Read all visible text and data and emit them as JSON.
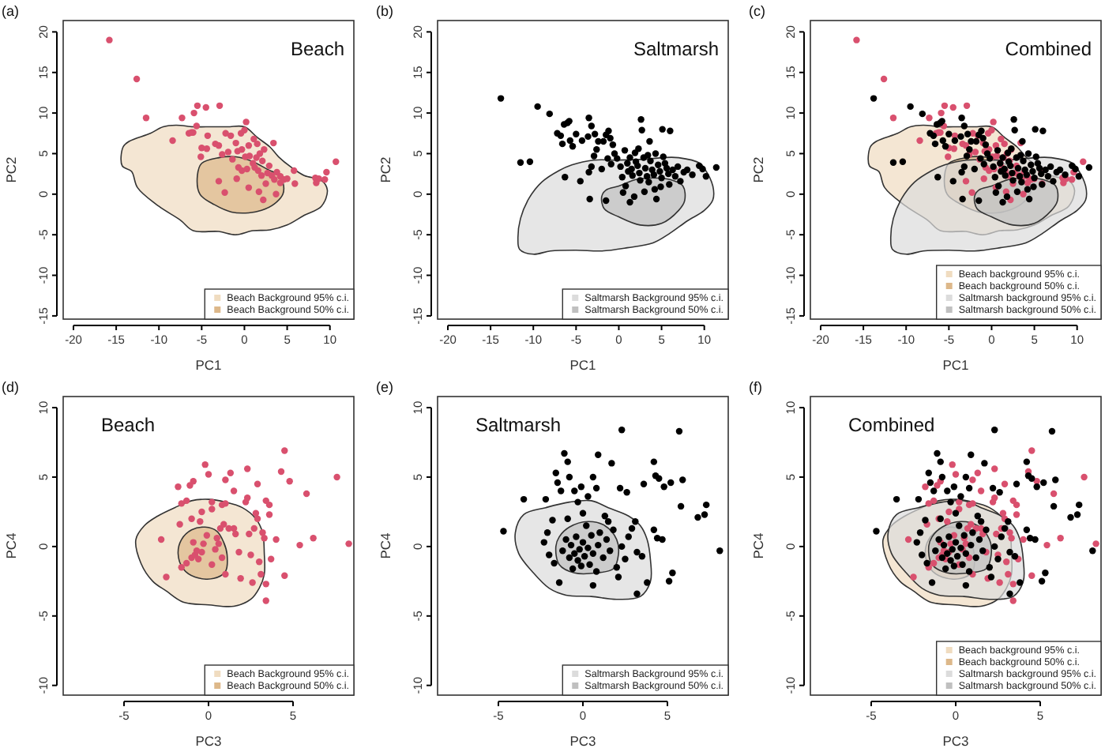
{
  "chart_data": [
    {
      "type": "scatter",
      "title": "Beach",
      "xlabel": "PC1",
      "ylabel": "PC2",
      "annotations": [
        "(a)"
      ],
      "xlim": [
        -21.2,
        12.8
      ],
      "ylim": [
        -15.4,
        21.4
      ],
      "xticks": [
        -20,
        -15,
        -10,
        -5,
        0,
        5,
        10
      ],
      "yticks": [
        -15,
        -10,
        -5,
        0,
        5,
        10,
        15,
        20
      ],
      "legend": "bottom right",
      "series": [
        {
          "type": "area",
          "name": "Beach Background 95% c.i.",
          "color": "#f0dcc0",
          "x": [
            -14.2,
            -14.3,
            -13.2,
            -12.5,
            -10,
            -7.5,
            -6,
            -3,
            -1,
            1,
            3,
            5,
            7,
            9,
            9.7,
            9,
            7,
            5.5,
            4,
            3,
            1.5,
            0,
            -2,
            -4.5,
            -6,
            -8,
            -9.5,
            -11,
            -13.5
          ],
          "values": [
            5.8,
            3.5,
            2.8,
            0.8,
            -1.5,
            -3.2,
            -4.5,
            -4.6,
            -5,
            -4.5,
            -4.4,
            -3.8,
            -2.6,
            -1.5,
            0.5,
            1.7,
            2.3,
            3.3,
            4.6,
            5.8,
            7,
            8.3,
            8.3,
            8.3,
            8.3,
            8.5,
            8.3,
            7.5,
            6.5
          ]
        },
        {
          "type": "area",
          "name": "Beach Background 50% c.i.",
          "color": "#ddb88a",
          "x": [
            -5.5,
            -5.2,
            -3.5,
            -1.5,
            0.5,
            2,
            3.5,
            4.5,
            4.5,
            4,
            2.8,
            1,
            -1,
            -3,
            -5
          ],
          "values": [
            2.3,
            0,
            -1.3,
            -2.2,
            -2.3,
            -2,
            -1.2,
            0,
            1.5,
            2.4,
            3,
            4,
            4.6,
            4.5,
            3.8
          ]
        },
        {
          "color": "#d9506e",
          "marker": "circle",
          "x": [
            -15.8,
            -12.6,
            -11.5,
            -8.4,
            -7.3,
            -6.5,
            -6.2,
            -5.9,
            -5.6,
            -5.5,
            -4.5,
            -2.9,
            -6,
            -5,
            -5.1,
            -4.4,
            -4.3,
            -3.4,
            -3,
            -2.6,
            -2.2,
            -1.6,
            -1.9,
            -1.4,
            -1,
            -0.8,
            -0.4,
            0,
            0.2,
            -0.3,
            0.5,
            0.1,
            0.6,
            1.1,
            1.5,
            1.4,
            1.8,
            2.3,
            2.1,
            2.9,
            3.4,
            -0.7,
            -0.3,
            0.3,
            1,
            1.6,
            2,
            2.7,
            3.2,
            3.8,
            4.2,
            4.6,
            5,
            5.8,
            5.9,
            4.2,
            3.5,
            -3,
            -2.3,
            -0.9,
            0.5,
            1.7,
            2.2,
            3.7,
            8.3,
            8.7,
            9.4,
            9.6,
            10.7,
            8.4,
            1.2,
            2.5
          ],
          "values": [
            19,
            14.2,
            9.4,
            6.6,
            9.4,
            7.5,
            7.6,
            10,
            8.4,
            10.9,
            10.7,
            10.9,
            7.6,
            5.7,
            4.6,
            5.6,
            7.2,
            6.2,
            6,
            4.9,
            7.5,
            7.2,
            5.2,
            4.3,
            6.3,
            5.3,
            7.5,
            7.9,
            8.9,
            5.5,
            6,
            4.6,
            4.7,
            6.8,
            6.2,
            4.5,
            5,
            5.5,
            4.1,
            3.5,
            6.3,
            3.3,
            2.9,
            3.1,
            3.8,
            2.9,
            2.3,
            2.6,
            2.3,
            2.7,
            2.2,
            1.8,
            1.9,
            2.9,
            1.3,
            1.4,
            1.8,
            1.6,
            0.2,
            1.9,
            0.8,
            0.3,
            -0.7,
            0,
            2,
            1.9,
            1.8,
            2.7,
            4,
            1.4,
            3.3,
            1.3
          ]
        }
      ]
    },
    {
      "type": "scatter",
      "title": "Saltmarsh",
      "xlabel": "PC1",
      "ylabel": "PC2",
      "annotations": [
        "(b)"
      ],
      "xlim": [
        -21.2,
        12.8
      ],
      "ylim": [
        -15.4,
        21.4
      ],
      "xticks": [
        -20,
        -15,
        -10,
        -5,
        0,
        5,
        10
      ],
      "yticks": [
        -15,
        -10,
        -5,
        0,
        5,
        10,
        15,
        20
      ],
      "legend": "bottom right",
      "series": [
        {
          "type": "area",
          "name": "Saltmarsh Background 95% c.i.",
          "color": "#dcdcdc",
          "x": [
            -11.6,
            -10,
            -8,
            -5,
            -2,
            1,
            4,
            6,
            8,
            10,
            11,
            11,
            10,
            9.5,
            7,
            5,
            3,
            0,
            -3,
            -5.5,
            -7,
            -9,
            -10.5,
            -11.5,
            -11.8
          ],
          "values": [
            -6.8,
            -7.4,
            -7,
            -6.9,
            -7,
            -6.6,
            -6,
            -4.8,
            -3.3,
            -2,
            -0.7,
            1,
            3.2,
            3.8,
            4.5,
            4.5,
            4.3,
            4.2,
            4.2,
            3.6,
            2.9,
            1.5,
            -0.5,
            -3,
            -5.5
          ]
        },
        {
          "type": "area",
          "name": "Saltmarsh Background 50% c.i.",
          "color": "#c0c0c0",
          "x": [
            -2,
            -1.7,
            0,
            2.5,
            5,
            7,
            7.7,
            7.5,
            6,
            4,
            2,
            0,
            -1.5
          ],
          "values": [
            -0.3,
            -1.8,
            -2.8,
            -3.8,
            -3.6,
            -2,
            -0.8,
            1,
            1.8,
            2,
            1.8,
            1,
            0.5
          ]
        },
        {
          "color": "#000000",
          "marker": "circle",
          "x": [
            -13.8,
            -11.5,
            -10.4,
            -9.5,
            -8.1,
            -7.2,
            -6.8,
            -6.4,
            -6,
            -5.8,
            -6.6,
            -5.7,
            -5.4,
            -6.3,
            -4.5,
            -5,
            -4.3,
            -3.6,
            -3.5,
            -3.2,
            -2.8,
            -2.4,
            -2.9,
            -3.2,
            -3.5,
            -3.4,
            -2.6,
            -1.8,
            -1.5,
            -1.2,
            -1,
            -0.7,
            -0.5,
            -1.3,
            -0.9,
            -1.5,
            -0.2,
            0.2,
            0.4,
            0.8,
            1.3,
            0.7,
            1,
            1.3,
            1.5,
            1.6,
            1.9,
            2,
            2.2,
            2.4,
            2.5,
            2.7,
            2.6,
            2.9,
            3.1,
            3.3,
            3.5,
            3.6,
            3.7,
            3.9,
            4.1,
            4.2,
            4.4,
            4.3,
            4.6,
            4.8,
            5,
            5.1,
            5.2,
            5.4,
            5.6,
            5.8,
            5.9,
            6,
            6.3,
            6.6,
            6.9,
            7.2,
            7.6,
            8,
            8.6,
            9.4,
            9.8,
            10.2,
            11.4,
            0.5,
            1.8,
            3,
            2.3,
            1.1,
            3.4,
            -2,
            4.9
          ],
          "values": [
            11.8,
            3.9,
            4,
            10.8,
            9.9,
            7.5,
            7.2,
            8.6,
            8.8,
            9,
            6.2,
            6.6,
            5.9,
            2.1,
            1.6,
            7.4,
            6.6,
            7.1,
            9.4,
            8.4,
            7.4,
            6.5,
            4.7,
            3.4,
            2.7,
            -0.6,
            5.5,
            6.5,
            7.3,
            7.8,
            6.9,
            6.1,
            5,
            4.4,
            3.7,
            -0.8,
            4.4,
            3.4,
            2.1,
            1,
            -1,
            5.4,
            3.8,
            4.5,
            3.1,
            2.3,
            5.1,
            4,
            3.5,
            2.6,
            1.7,
            7.9,
            9.2,
            4.5,
            3.2,
            2.2,
            1.5,
            6.5,
            4.1,
            3,
            2.4,
            0.6,
            -0.6,
            5,
            3.6,
            2.8,
            2,
            8,
            4.6,
            3.8,
            3.2,
            2.5,
            1.2,
            7.8,
            3,
            2.2,
            3.4,
            1.6,
            2.7,
            3,
            2.4,
            3.5,
            3.1,
            2.2,
            3.3,
            0.2,
            -0.3,
            0.3,
            5.6,
            2.8,
            4.8,
            3.1,
            0.9
          ]
        }
      ]
    },
    {
      "type": "scatter",
      "title": "Combined",
      "xlabel": "PC1",
      "ylabel": "PC2",
      "annotations": [
        "(c)"
      ],
      "xlim": [
        -21.2,
        12.8
      ],
      "ylim": [
        -15.4,
        21.4
      ],
      "xticks": [
        -20,
        -15,
        -10,
        -5,
        0,
        5,
        10
      ],
      "yticks": [
        -15,
        -10,
        -5,
        0,
        5,
        10,
        15,
        20
      ],
      "legend": "bottom right",
      "series": [
        {
          "type": "area",
          "name": "Beach background 95% c.i.",
          "color": "#f0dcc0",
          "x": [
            -14.2,
            -14.3,
            -13.2,
            -12.5,
            -10,
            -7.5,
            -6,
            -3,
            -1,
            1,
            3,
            5,
            7,
            9,
            9.7,
            9,
            7,
            5.5,
            4,
            3,
            1.5,
            0,
            -2,
            -4.5,
            -6,
            -8,
            -9.5,
            -11,
            -13.5
          ],
          "values": [
            5.8,
            3.5,
            2.8,
            0.8,
            -1.5,
            -3.2,
            -4.5,
            -4.6,
            -5,
            -4.5,
            -4.4,
            -3.8,
            -2.6,
            -1.5,
            0.5,
            1.7,
            2.3,
            3.3,
            4.6,
            5.8,
            7,
            8.3,
            8.3,
            8.3,
            8.3,
            8.5,
            8.3,
            7.5,
            6.5
          ]
        },
        {
          "type": "area",
          "name": "Beach background 50% c.i.",
          "color": "#ddb88a",
          "x": [
            -5.5,
            -5.2,
            -3.5,
            -1.5,
            0.5,
            2,
            3.5,
            4.5,
            4.5,
            4,
            2.8,
            1,
            -1,
            -3,
            -5
          ],
          "values": [
            2.3,
            0,
            -1.3,
            -2.2,
            -2.3,
            -2,
            -1.2,
            0,
            1.5,
            2.4,
            3,
            4,
            4.6,
            4.5,
            3.8
          ]
        },
        {
          "type": "area",
          "name": "Saltmarsh background 95% c.i.",
          "color": "#dcdcdc",
          "x": [
            -11.6,
            -10,
            -8,
            -5,
            -2,
            1,
            4,
            6,
            8,
            10,
            11,
            11,
            10,
            9.5,
            7,
            5,
            3,
            0,
            -3,
            -5.5,
            -7,
            -9,
            -10.5,
            -11.5,
            -11.8
          ],
          "values": [
            -6.8,
            -7.4,
            -7,
            -6.9,
            -7,
            -6.6,
            -6,
            -4.8,
            -3.3,
            -2,
            -0.7,
            1,
            3.2,
            3.8,
            4.5,
            4.5,
            4.3,
            4.2,
            4.2,
            3.6,
            2.9,
            1.5,
            -0.5,
            -3,
            -5.5
          ]
        },
        {
          "type": "area",
          "name": "Saltmarsh background 50% c.i.",
          "color": "#c0c0c0",
          "x": [
            -2,
            -1.7,
            0,
            2.5,
            5,
            7,
            7.7,
            7.5,
            6,
            4,
            2,
            0,
            -1.5
          ],
          "values": [
            -0.3,
            -1.8,
            -2.8,
            -3.8,
            -3.6,
            -2,
            -0.8,
            1,
            1.8,
            2,
            1.8,
            1,
            0.5
          ]
        },
        {
          "color": "#d9506e",
          "marker": "circle",
          "x": [
            -15.8,
            -12.6,
            -11.5,
            -8.4,
            -7.3,
            -6.5,
            -6.2,
            -5.9,
            -5.6,
            -5.5,
            -4.5,
            -2.9,
            -6,
            -5,
            -5.1,
            -4.4,
            -4.3,
            -3.4,
            -3,
            -2.6,
            -2.2,
            -1.6,
            -1.9,
            -1.4,
            -1,
            -0.8,
            -0.4,
            0,
            0.2,
            -0.3,
            0.5,
            0.1,
            0.6,
            1.1,
            1.5,
            1.4,
            1.8,
            2.3,
            2.1,
            2.9,
            3.4,
            -0.7,
            -0.3,
            0.3,
            1,
            1.6,
            2,
            2.7,
            3.2,
            3.8,
            4.2,
            4.6,
            5,
            5.8,
            5.9,
            4.2,
            3.5,
            -3,
            -2.3,
            -0.9,
            0.5,
            1.7,
            2.2,
            3.7,
            8.3,
            8.7,
            9.4,
            9.6,
            10.7,
            8.4,
            1.2,
            2.5
          ],
          "values": [
            19,
            14.2,
            9.4,
            6.6,
            9.4,
            7.5,
            7.6,
            10,
            8.4,
            10.9,
            10.7,
            10.9,
            7.6,
            5.7,
            4.6,
            5.6,
            7.2,
            6.2,
            6,
            4.9,
            7.5,
            7.2,
            5.2,
            4.3,
            6.3,
            5.3,
            7.5,
            7.9,
            8.9,
            5.5,
            6,
            4.6,
            4.7,
            6.8,
            6.2,
            4.5,
            5,
            5.5,
            4.1,
            3.5,
            6.3,
            3.3,
            2.9,
            3.1,
            3.8,
            2.9,
            2.3,
            2.6,
            2.3,
            2.7,
            2.2,
            1.8,
            1.9,
            2.9,
            1.3,
            1.4,
            1.8,
            1.6,
            0.2,
            1.9,
            0.8,
            0.3,
            -0.7,
            0,
            2,
            1.9,
            1.8,
            2.7,
            4,
            1.4,
            3.3,
            1.3
          ]
        },
        {
          "color": "#000000",
          "marker": "circle",
          "x": [
            -13.8,
            -11.5,
            -10.4,
            -9.5,
            -8.1,
            -7.2,
            -6.8,
            -6.4,
            -6,
            -5.8,
            -6.6,
            -5.7,
            -5.4,
            -6.3,
            -4.5,
            -5,
            -4.3,
            -3.6,
            -3.5,
            -3.2,
            -2.8,
            -2.4,
            -2.9,
            -3.2,
            -3.5,
            -3.4,
            -2.6,
            -1.8,
            -1.5,
            -1.2,
            -1,
            -0.7,
            -0.5,
            -1.3,
            -0.9,
            -1.5,
            -0.2,
            0.2,
            0.4,
            0.8,
            1.3,
            0.7,
            1,
            1.3,
            1.5,
            1.6,
            1.9,
            2,
            2.2,
            2.4,
            2.5,
            2.7,
            2.6,
            2.9,
            3.1,
            3.3,
            3.5,
            3.6,
            3.7,
            3.9,
            4.1,
            4.2,
            4.4,
            4.3,
            4.6,
            4.8,
            5,
            5.1,
            5.2,
            5.4,
            5.6,
            5.8,
            5.9,
            6,
            6.3,
            6.6,
            6.9,
            7.2,
            7.6,
            8,
            8.6,
            9.4,
            9.8,
            10.2,
            11.4,
            0.5,
            1.8,
            3,
            2.3,
            1.1,
            3.4,
            -2,
            4.9
          ],
          "values": [
            11.8,
            3.9,
            4,
            10.8,
            9.9,
            7.5,
            7.2,
            8.6,
            8.8,
            9,
            6.2,
            6.6,
            5.9,
            2.1,
            1.6,
            7.4,
            6.6,
            7.1,
            9.4,
            8.4,
            7.4,
            6.5,
            4.7,
            3.4,
            2.7,
            -0.6,
            5.5,
            6.5,
            7.3,
            7.8,
            6.9,
            6.1,
            5,
            4.4,
            3.7,
            -0.8,
            4.4,
            3.4,
            2.1,
            1,
            -1,
            5.4,
            3.8,
            4.5,
            3.1,
            2.3,
            5.1,
            4,
            3.5,
            2.6,
            1.7,
            7.9,
            9.2,
            4.5,
            3.2,
            2.2,
            1.5,
            6.5,
            4.1,
            3,
            2.4,
            0.6,
            -0.6,
            5,
            3.6,
            2.8,
            2,
            8,
            4.6,
            3.8,
            3.2,
            2.5,
            1.2,
            7.8,
            3,
            2.2,
            3.4,
            1.6,
            2.7,
            3,
            2.4,
            3.5,
            3.1,
            2.2,
            3.3,
            0.2,
            -0.3,
            0.3,
            5.6,
            2.8,
            4.8,
            3.1,
            0.9
          ]
        }
      ]
    },
    {
      "type": "scatter",
      "title": "Beach",
      "xlabel": "PC3",
      "ylabel": "PC4",
      "annotations": [
        "(d)"
      ],
      "xlim": [
        -8.6,
        8.6
      ],
      "ylim": [
        -10.7,
        10.8
      ],
      "xticks": [
        -5,
        0,
        5
      ],
      "yticks": [
        -10,
        -5,
        0,
        5,
        10
      ],
      "legend": "bottom right",
      "series": [
        {
          "type": "area",
          "name": "Beach Background 95% c.i.",
          "color": "#f0dcc0",
          "x": [
            -4.3,
            -4,
            -3.3,
            -2.5,
            -1.5,
            0,
            1.5,
            2.5,
            3,
            3.3,
            3.3,
            3.2,
            2.8,
            2,
            1,
            0,
            -1,
            -2,
            -3,
            -3.8
          ],
          "values": [
            0.5,
            -1.2,
            -2.5,
            -3.2,
            -4,
            -4.2,
            -4.3,
            -3.8,
            -3,
            -2,
            -0.5,
            1,
            2,
            2.8,
            3.2,
            3.4,
            3.3,
            2.8,
            2.2,
            1.5
          ]
        },
        {
          "type": "area",
          "name": "Beach Background 50% c.i.",
          "color": "#ddb88a",
          "x": [
            -1.8,
            -1.5,
            -0.8,
            0.3,
            1,
            1.1,
            0.9,
            0.5,
            -0.2,
            -1,
            -1.6
          ],
          "values": [
            -0.5,
            -1.6,
            -2.2,
            -2.3,
            -1.8,
            -0.6,
            0.3,
            1.1,
            1.4,
            1.2,
            0.5
          ]
        },
        {
          "color": "#d9506e",
          "marker": "circle",
          "x": [
            -2.8,
            -2.5,
            -1.8,
            -1.6,
            -1.3,
            -1.1,
            -0.9,
            -0.2,
            0,
            0.2,
            0.2,
            -0.5,
            -1,
            -1.7,
            -1.6,
            -1.3,
            -1,
            -0.8,
            -0.6,
            -0.4,
            -0.3,
            -0.9,
            -0.7,
            -0.1,
            0.2,
            0.4,
            0.6,
            0.8,
            1,
            0.7,
            0.9,
            0.8,
            1,
            1,
            1.3,
            1.5,
            1.2,
            1.6,
            1.8,
            1.9,
            2.2,
            2.3,
            2.3,
            2.4,
            2.5,
            2.7,
            2.8,
            2.9,
            2.9,
            3,
            3.1,
            3.2,
            3.3,
            3.4,
            3.6,
            3.6,
            3.7,
            3.4,
            3.4,
            2.6,
            4,
            4.3,
            4.5,
            4.5,
            4.8,
            5.4,
            5.8,
            6.2,
            7.6,
            8.3,
            0.5,
            -0.4,
            1.5
          ],
          "values": [
            0.5,
            -2.2,
            4.3,
            3.1,
            3.3,
            4.4,
            4.7,
            5.9,
            5.2,
            3.2,
            2.7,
            1.8,
            2,
            1.6,
            -1.5,
            -1.2,
            -0.8,
            -0.6,
            -0.9,
            -0.4,
            0.2,
            0.3,
            -0.3,
            0.8,
            -1.3,
            -0.2,
            0.2,
            -0.8,
            -2,
            1.3,
            1.6,
            3,
            3.1,
            4.8,
            5.3,
            4,
            1.3,
            0.9,
            -0.4,
            -2.3,
            3.2,
            3.5,
            5.6,
            0.9,
            -0.6,
            1.3,
            2.4,
            4.5,
            2,
            -1.1,
            -2,
            1,
            0.6,
            3.3,
            3,
            2.3,
            -0.9,
            -2.7,
            -3.9,
            -2.6,
            0.5,
            5.4,
            6.9,
            -2.1,
            4.7,
            0.1,
            3.8,
            0.6,
            5,
            0.2,
            0.6,
            2.5,
            1.3
          ]
        }
      ]
    },
    {
      "type": "scatter",
      "title": "Saltmarsh",
      "xlabel": "PC3",
      "ylabel": "PC4",
      "annotations": [
        "(e)"
      ],
      "xlim": [
        -8.6,
        8.6
      ],
      "ylim": [
        -10.7,
        10.8
      ],
      "xticks": [
        -5,
        0,
        5
      ],
      "yticks": [
        -10,
        -5,
        0,
        5,
        10
      ],
      "legend": "bottom right",
      "series": [
        {
          "type": "area",
          "name": "Saltmarsh Background 95% c.i.",
          "color": "#dcdcdc",
          "x": [
            -4,
            -3.8,
            -3,
            -2,
            -1,
            0.5,
            2,
            3.4,
            4,
            4,
            3.8,
            3.4,
            2.7,
            1.5,
            0.5,
            -0.8,
            -2.2,
            -3.5
          ],
          "values": [
            1,
            -0.5,
            -1.8,
            -3,
            -3.5,
            -3.6,
            -3.8,
            -3.6,
            -2.5,
            -1,
            0.5,
            1.5,
            2.2,
            2.8,
            3.3,
            3.2,
            2.8,
            2.3
          ]
        },
        {
          "type": "area",
          "name": "Saltmarsh Background 50% c.i.",
          "color": "#c0c0c0",
          "x": [
            -1.6,
            -1.4,
            -0.5,
            0.8,
            1.8,
            2.1,
            2,
            1.3,
            0.3,
            -0.8,
            -1.4
          ],
          "values": [
            0,
            -1.3,
            -1.9,
            -1.9,
            -1.6,
            -0.6,
            0.5,
            1.5,
            1.8,
            1.4,
            0.7
          ]
        },
        {
          "color": "#000000",
          "marker": "circle",
          "x": [
            -4.7,
            -3.5,
            -2.2,
            -2.1,
            -2,
            -1.8,
            -1.7,
            -1.6,
            -1.5,
            -1.3,
            -1.1,
            -0.9,
            -0.8,
            -0.5,
            -0.3,
            -0.1,
            0,
            0.3,
            0.6,
            0.9,
            0.8,
            1.3,
            1.7,
            2.2,
            2.3,
            2.6,
            2.9,
            3.1,
            3.2,
            3.6,
            3.8,
            3.2,
            4.2,
            4.3,
            4.5,
            4.2,
            4.4,
            4.7,
            4.8,
            5.2,
            5.1,
            5.3,
            5.7,
            5.9,
            5.8,
            6.8,
            7.2,
            7.3,
            8.1,
            -1.2,
            -1,
            -0.8,
            -0.7,
            -0.6,
            -0.5,
            -0.4,
            -0.3,
            -0.2,
            -0.1,
            0,
            0.1,
            0.2,
            0.3,
            0.4,
            0.5,
            0.6,
            0.8,
            0.9,
            1,
            1.2,
            1.4,
            1.6,
            1.8,
            2,
            2.3,
            2.5,
            2.7,
            -1.4,
            0.6,
            -2.3,
            -0.9,
            1.5,
            3.5,
            2.1
          ],
          "values": [
            1.1,
            3.4,
            3.4,
            1,
            -0.6,
            1.9,
            -1.2,
            5.3,
            4.6,
            4,
            6.7,
            6.1,
            5,
            4,
            3.2,
            4.3,
            2.4,
            3.6,
            5,
            6.6,
            4.2,
            2.2,
            6,
            4.2,
            8.4,
            3.9,
            1.3,
            1.8,
            -0.4,
            4.5,
            -2.6,
            -3.4,
            6.1,
            5.1,
            4.9,
            1.2,
            0.6,
            0.5,
            4.3,
            4.6,
            -2.5,
            -1.9,
            8.3,
            4.8,
            2.9,
            2.1,
            2.3,
            3,
            -0.3,
            -0.3,
            0.5,
            -0.8,
            0.1,
            -1.6,
            -0.5,
            0.7,
            -1,
            -0.2,
            -1.4,
            0.3,
            -0.7,
            1.5,
            -0.1,
            -1.3,
            0.8,
            -0.5,
            -1.8,
            0.1,
            1,
            -0.8,
            0.5,
            -0.3,
            1.2,
            -1.5,
            0,
            -0.9,
            0.7,
            -2.6,
            -2.8,
            0.3,
            2,
            1.8,
            -0.7,
            -2.2
          ]
        }
      ]
    },
    {
      "type": "scatter",
      "title": "Combined",
      "xlabel": "PC3",
      "ylabel": "PC4",
      "annotations": [
        "(f)"
      ],
      "xlim": [
        -8.6,
        8.6
      ],
      "ylim": [
        -10.7,
        10.8
      ],
      "xticks": [
        -5,
        0,
        5
      ],
      "yticks": [
        -10,
        -5,
        0,
        5,
        10
      ],
      "legend": "bottom right",
      "series": [
        {
          "type": "area",
          "name": "Beach background 95% c.i.",
          "color": "#f0dcc0",
          "x": [
            -4.3,
            -4,
            -3.3,
            -2.5,
            -1.5,
            0,
            1.5,
            2.5,
            3,
            3.3,
            3.3,
            3.2,
            2.8,
            2,
            1,
            0,
            -1,
            -2,
            -3,
            -3.8
          ],
          "values": [
            0.5,
            -1.2,
            -2.5,
            -3.2,
            -4,
            -4.2,
            -4.3,
            -3.8,
            -3,
            -2,
            -0.5,
            1,
            2,
            2.8,
            3.2,
            3.4,
            3.3,
            2.8,
            2.2,
            1.5
          ]
        },
        {
          "type": "area",
          "name": "Beach background 50% c.i.",
          "color": "#ddb88a",
          "x": [
            -1.8,
            -1.5,
            -0.8,
            0.3,
            1,
            1.1,
            0.9,
            0.5,
            -0.2,
            -1,
            -1.6
          ],
          "values": [
            -0.5,
            -1.6,
            -2.2,
            -2.3,
            -1.8,
            -0.6,
            0.3,
            1.1,
            1.4,
            1.2,
            0.5
          ]
        },
        {
          "type": "area",
          "name": "Saltmarsh background 95% c.i.",
          "color": "#dcdcdc",
          "x": [
            -4,
            -3.8,
            -3,
            -2,
            -1,
            0.5,
            2,
            3.4,
            4,
            4,
            3.8,
            3.4,
            2.7,
            1.5,
            0.5,
            -0.8,
            -2.2,
            -3.5
          ],
          "values": [
            1,
            -0.5,
            -1.8,
            -3,
            -3.5,
            -3.6,
            -3.8,
            -3.6,
            -2.5,
            -1,
            0.5,
            1.5,
            2.2,
            2.8,
            3.3,
            3.2,
            2.8,
            2.3
          ]
        },
        {
          "type": "area",
          "name": "Saltmarsh background 50% c.i.",
          "color": "#c0c0c0",
          "x": [
            -1.6,
            -1.4,
            -0.5,
            0.8,
            1.8,
            2.1,
            2,
            1.3,
            0.3,
            -0.8,
            -1.4
          ],
          "values": [
            0,
            -1.3,
            -1.9,
            -1.9,
            -1.6,
            -0.6,
            0.5,
            1.5,
            1.8,
            1.4,
            0.7
          ]
        },
        {
          "color": "#d9506e",
          "marker": "circle",
          "x": [
            -2.8,
            -2.5,
            -1.8,
            -1.6,
            -1.3,
            -1.1,
            -0.9,
            -0.2,
            0,
            0.2,
            0.2,
            -0.5,
            -1,
            -1.7,
            -1.6,
            -1.3,
            -1,
            -0.8,
            -0.6,
            -0.4,
            -0.3,
            -0.9,
            -0.7,
            -0.1,
            0.2,
            0.4,
            0.6,
            0.8,
            1,
            0.7,
            0.9,
            0.8,
            1,
            1,
            1.3,
            1.5,
            1.2,
            1.6,
            1.8,
            1.9,
            2.2,
            2.3,
            2.3,
            2.4,
            2.5,
            2.7,
            2.8,
            2.9,
            2.9,
            3,
            3.1,
            3.2,
            3.3,
            3.4,
            3.6,
            3.6,
            3.7,
            3.4,
            3.4,
            2.6,
            4,
            4.3,
            4.5,
            4.5,
            4.8,
            5.4,
            5.8,
            6.2,
            7.6,
            8.3,
            0.5,
            -0.4,
            1.5
          ],
          "values": [
            0.5,
            -2.2,
            4.3,
            3.1,
            3.3,
            4.4,
            4.7,
            5.9,
            5.2,
            3.2,
            2.7,
            1.8,
            2,
            1.6,
            -1.5,
            -1.2,
            -0.8,
            -0.6,
            -0.9,
            -0.4,
            0.2,
            0.3,
            -0.3,
            0.8,
            -1.3,
            -0.2,
            0.2,
            -0.8,
            -2,
            1.3,
            1.6,
            3,
            3.1,
            4.8,
            5.3,
            4,
            1.3,
            0.9,
            -0.4,
            -2.3,
            3.2,
            3.5,
            5.6,
            0.9,
            -0.6,
            1.3,
            2.4,
            4.5,
            2,
            -1.1,
            -2,
            1,
            0.6,
            3.3,
            3,
            2.3,
            -0.9,
            -2.7,
            -3.9,
            -2.6,
            0.5,
            5.4,
            6.9,
            -2.1,
            4.7,
            0.1,
            3.8,
            0.6,
            5,
            0.2,
            0.6,
            2.5,
            1.3
          ]
        },
        {
          "color": "#000000",
          "marker": "circle",
          "x": [
            -4.7,
            -3.5,
            -2.2,
            -2.1,
            -2,
            -1.8,
            -1.7,
            -1.6,
            -1.5,
            -1.3,
            -1.1,
            -0.9,
            -0.8,
            -0.5,
            -0.3,
            -0.1,
            0,
            0.3,
            0.6,
            0.9,
            0.8,
            1.3,
            1.7,
            2.2,
            2.3,
            2.6,
            2.9,
            3.1,
            3.2,
            3.6,
            3.8,
            3.2,
            4.2,
            4.3,
            4.5,
            4.2,
            4.4,
            4.7,
            4.8,
            5.2,
            5.1,
            5.3,
            5.7,
            5.9,
            5.8,
            6.8,
            7.2,
            7.3,
            8.1,
            -1.2,
            -1,
            -0.8,
            -0.7,
            -0.6,
            -0.5,
            -0.4,
            -0.3,
            -0.2,
            -0.1,
            0,
            0.1,
            0.2,
            0.3,
            0.4,
            0.5,
            0.6,
            0.8,
            0.9,
            1,
            1.2,
            1.4,
            1.6,
            1.8,
            2,
            2.3,
            2.5,
            2.7,
            -1.4,
            0.6,
            -2.3,
            -0.9,
            1.5,
            3.5,
            2.1
          ],
          "values": [
            1.1,
            3.4,
            3.4,
            1,
            -0.6,
            1.9,
            -1.2,
            5.3,
            4.6,
            4,
            6.7,
            6.1,
            5,
            4,
            3.2,
            4.3,
            2.4,
            3.6,
            5,
            6.6,
            4.2,
            2.2,
            6,
            4.2,
            8.4,
            3.9,
            1.3,
            1.8,
            -0.4,
            4.5,
            -2.6,
            -3.4,
            6.1,
            5.1,
            4.9,
            1.2,
            0.6,
            0.5,
            4.3,
            4.6,
            -2.5,
            -1.9,
            8.3,
            4.8,
            2.9,
            2.1,
            2.3,
            3,
            -0.3,
            -0.3,
            0.5,
            -0.8,
            0.1,
            -1.6,
            -0.5,
            0.7,
            -1,
            -0.2,
            -1.4,
            0.3,
            -0.7,
            1.5,
            -0.1,
            -1.3,
            0.8,
            -0.5,
            -1.8,
            0.1,
            1,
            -0.8,
            0.5,
            -0.3,
            1.2,
            -1.5,
            0,
            -0.9,
            0.7,
            -2.6,
            -2.8,
            0.3,
            2,
            1.8,
            -0.7,
            -2.2
          ]
        }
      ]
    }
  ]
}
